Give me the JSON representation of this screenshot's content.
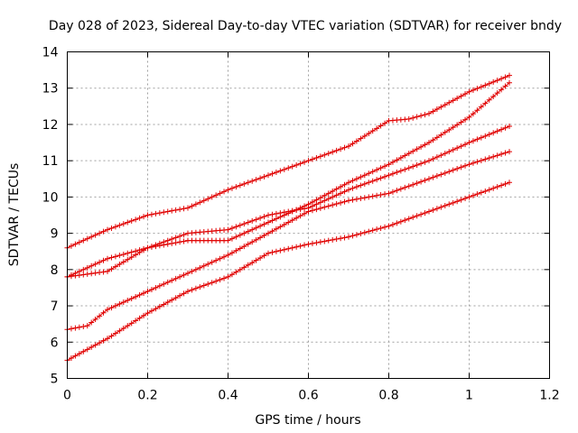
{
  "chart_data": {
    "type": "line",
    "title": "Day 028 of 2023, Sidereal Day-to-day VTEC variation (SDTVAR) for receiver bndy",
    "xlabel": "GPS time / hours",
    "ylabel": "SDTVAR / TECUs",
    "xlim": [
      0,
      1.2
    ],
    "ylim": [
      5,
      14
    ],
    "xticks": [
      0,
      0.2,
      0.4,
      0.6,
      0.8,
      1,
      1.2
    ],
    "xtick_labels": [
      "0",
      "0.2",
      "0.4",
      "0.6",
      "0.8",
      "1",
      "1.2"
    ],
    "yticks": [
      5,
      6,
      7,
      8,
      9,
      10,
      11,
      12,
      13,
      14
    ],
    "ytick_labels": [
      "5",
      "6",
      "7",
      "8",
      "9",
      "10",
      "11",
      "12",
      "13",
      "14"
    ],
    "grid": true,
    "marker": "plus",
    "color": "#e00000",
    "series": [
      {
        "name": "series-1",
        "x": [
          0,
          0.1,
          0.2,
          0.3,
          0.4,
          0.5,
          0.6,
          0.7,
          0.8,
          0.85,
          0.9,
          1.0,
          1.1
        ],
        "y": [
          8.6,
          9.1,
          9.5,
          9.7,
          10.2,
          10.6,
          11.0,
          11.4,
          12.1,
          12.15,
          12.3,
          12.9,
          13.35
        ]
      },
      {
        "name": "series-2",
        "x": [
          0,
          0.1,
          0.2,
          0.3,
          0.4,
          0.5,
          0.6,
          0.7,
          0.8,
          0.9,
          1.0,
          1.1
        ],
        "y": [
          7.8,
          7.95,
          8.6,
          8.8,
          8.8,
          9.3,
          9.8,
          10.4,
          10.9,
          11.5,
          12.2,
          13.15
        ]
      },
      {
        "name": "series-3",
        "x": [
          0,
          0.1,
          0.2,
          0.3,
          0.4,
          0.5,
          0.6,
          0.7,
          0.8,
          0.9,
          1.0,
          1.1
        ],
        "y": [
          7.8,
          8.3,
          8.6,
          9.0,
          9.1,
          9.5,
          9.7,
          10.2,
          10.6,
          11.0,
          11.5,
          11.95
        ]
      },
      {
        "name": "series-4",
        "x": [
          0,
          0.05,
          0.1,
          0.2,
          0.3,
          0.4,
          0.5,
          0.6,
          0.7,
          0.8,
          0.9,
          1.0,
          1.1
        ],
        "y": [
          6.35,
          6.45,
          6.9,
          7.4,
          7.9,
          8.4,
          9.0,
          9.6,
          9.9,
          10.1,
          10.5,
          10.9,
          11.25
        ]
      },
      {
        "name": "series-5",
        "x": [
          0,
          0.1,
          0.2,
          0.3,
          0.4,
          0.5,
          0.6,
          0.7,
          0.8,
          0.9,
          1.0,
          1.1
        ],
        "y": [
          5.5,
          6.1,
          6.8,
          7.4,
          7.8,
          8.45,
          8.7,
          8.9,
          9.2,
          9.6,
          10.0,
          10.4
        ]
      }
    ]
  }
}
